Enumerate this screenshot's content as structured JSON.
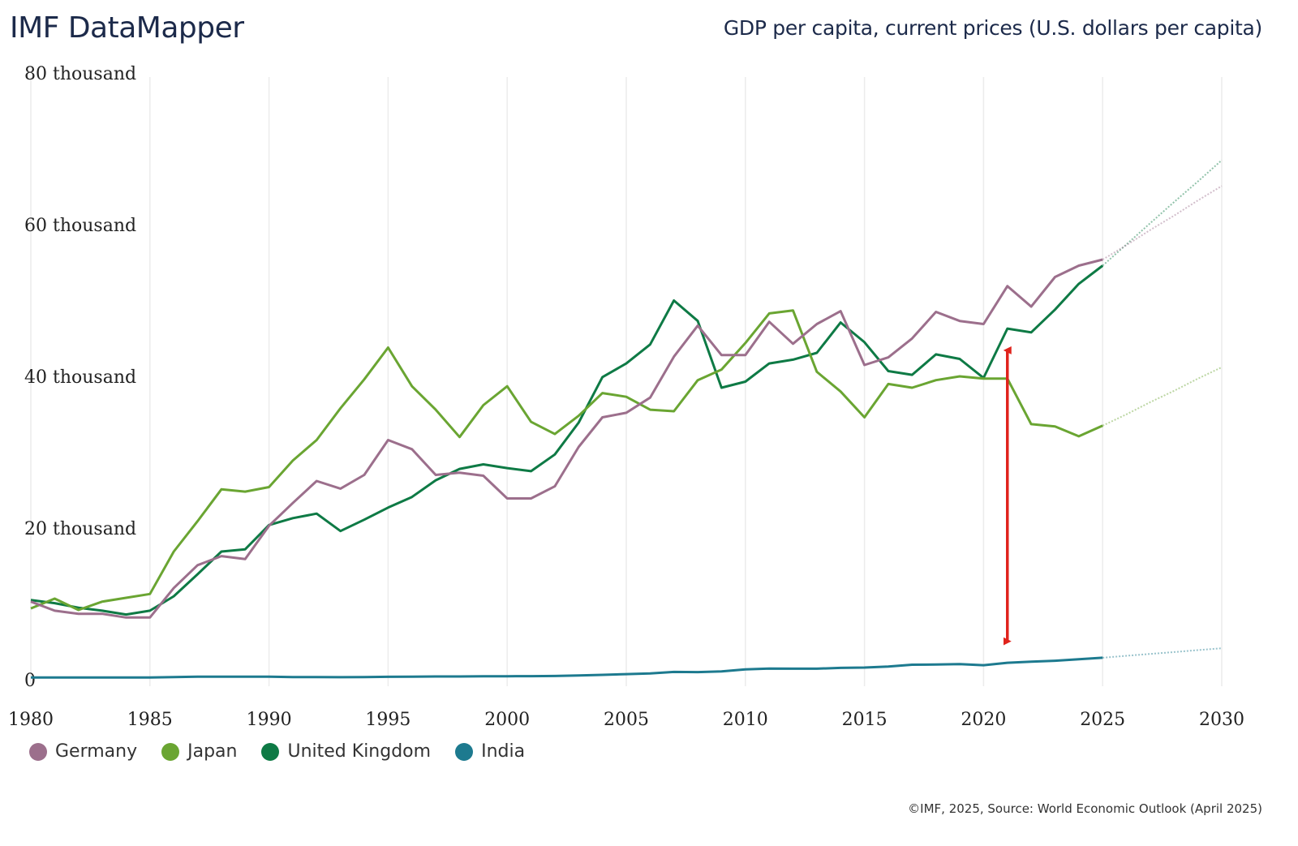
{
  "header": {
    "title": "IMF DataMapper",
    "subtitle": "GDP per capita, current prices (U.S. dollars per capita)"
  },
  "footer": "©IMF, 2025, Source: World Economic Outlook (April 2025)",
  "chart_data": {
    "type": "line",
    "title": "GDP per capita, current prices (U.S. dollars per capita)",
    "xlabel": "",
    "ylabel": "",
    "xlim": [
      1980,
      2030
    ],
    "ylim": [
      0,
      80000
    ],
    "x_ticks": [
      1980,
      1985,
      1990,
      1995,
      2000,
      2005,
      2010,
      2015,
      2020,
      2025,
      2030
    ],
    "x_tick_labels": [
      "1980",
      "1985",
      "1990",
      "1995",
      "2000",
      "2005",
      "2010",
      "2015",
      "2020",
      "2025",
      "2030"
    ],
    "y_ticks": [
      0,
      20000,
      40000,
      60000,
      80000
    ],
    "y_tick_labels": [
      "0",
      "20 thousand",
      "40 thousand",
      "60 thousand",
      "80 thousand"
    ],
    "grid": "vertical",
    "legend_position": "bottom-left",
    "forecast_from": 2025,
    "x": [
      1980,
      1981,
      1982,
      1983,
      1984,
      1985,
      1986,
      1987,
      1988,
      1989,
      1990,
      1991,
      1992,
      1993,
      1994,
      1995,
      1996,
      1997,
      1998,
      1999,
      2000,
      2001,
      2002,
      2003,
      2004,
      2005,
      2006,
      2007,
      2008,
      2009,
      2010,
      2011,
      2012,
      2013,
      2014,
      2015,
      2016,
      2017,
      2018,
      2019,
      2020,
      2021,
      2022,
      2023,
      2024,
      2025,
      2026,
      2027,
      2028,
      2029,
      2030
    ],
    "series": [
      {
        "name": "Germany",
        "color": "#9c6f8c",
        "values": [
          10300,
          9100,
          8700,
          8700,
          8200,
          8200,
          12100,
          15100,
          16300,
          15900,
          20300,
          23300,
          26200,
          25200,
          27000,
          31600,
          30400,
          27000,
          27300,
          26900,
          23900,
          23900,
          25500,
          30700,
          34600,
          35200,
          37200,
          42600,
          46700,
          42800,
          42800,
          47200,
          44300,
          46900,
          48600,
          41500,
          42500,
          45000,
          48500,
          47300,
          46900,
          51900,
          49200,
          53100,
          54600,
          55400,
          57300,
          59300,
          61200,
          63200,
          65100
        ]
      },
      {
        "name": "Japan",
        "color": "#6aa532",
        "values": [
          9400,
          10700,
          9200,
          10300,
          10800,
          11300,
          16900,
          20900,
          25100,
          24800,
          25400,
          28900,
          31600,
          35800,
          39600,
          43800,
          38700,
          35600,
          32000,
          36200,
          38700,
          34000,
          32400,
          34800,
          37800,
          37300,
          35600,
          35400,
          39500,
          40900,
          44400,
          48300,
          48700,
          40600,
          38000,
          34600,
          39000,
          38500,
          39500,
          40000,
          39700,
          39700,
          33700,
          33400,
          32100,
          33500,
          35000,
          36600,
          38100,
          39700,
          41200
        ]
      },
      {
        "name": "United Kingdom",
        "color": "#0e7a45",
        "values": [
          10500,
          10100,
          9500,
          9100,
          8600,
          9100,
          11000,
          13900,
          16900,
          17200,
          20400,
          21300,
          21900,
          19600,
          21100,
          22700,
          24100,
          26300,
          27800,
          28400,
          27900,
          27500,
          29700,
          33900,
          39900,
          41700,
          44200,
          50000,
          47300,
          38500,
          39300,
          41700,
          42200,
          43100,
          47100,
          44500,
          40700,
          40200,
          42900,
          42300,
          39800,
          46300,
          45800,
          48800,
          52200,
          54600,
          57400,
          60200,
          63000,
          65700,
          68500
        ]
      },
      {
        "name": "India",
        "color": "#1d7a8f",
        "values": [
          300,
          300,
          300,
          300,
          300,
          300,
          350,
          400,
          400,
          400,
          400,
          350,
          350,
          330,
          350,
          380,
          410,
          430,
          430,
          460,
          460,
          470,
          490,
          560,
          640,
          740,
          820,
          1030,
          1000,
          1100,
          1360,
          1460,
          1450,
          1450,
          1560,
          1600,
          1730,
          1980,
          2000,
          2050,
          1910,
          2240,
          2370,
          2500,
          2700,
          2900,
          3150,
          3400,
          3650,
          3900,
          4150
        ]
      }
    ],
    "annotations": [
      {
        "type": "double-arrow",
        "x": 2021,
        "y_from": 4000,
        "y_to": 44500,
        "color": "#e0231c"
      }
    ]
  }
}
